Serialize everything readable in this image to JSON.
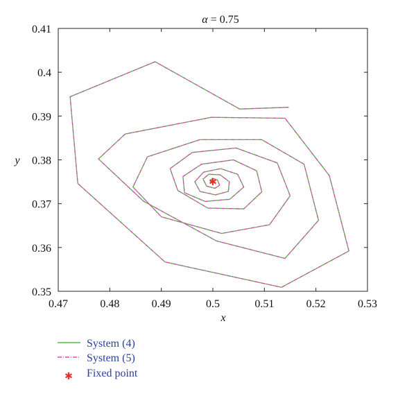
{
  "chart_data": {
    "type": "line",
    "title": "α = 0.75",
    "title_prefix": "α",
    "title_suffix": " = 0.75",
    "xlabel": "x",
    "ylabel": "y",
    "xlim": [
      0.47,
      0.53
    ],
    "ylim": [
      0.35,
      0.41
    ],
    "xticks": [
      "0.47",
      "0.48",
      "0.49",
      "0.5",
      "0.51",
      "0.52",
      "0.53"
    ],
    "yticks": [
      "0.35",
      "0.36",
      "0.37",
      "0.38",
      "0.39",
      "0.4",
      "0.41"
    ],
    "grid": false,
    "legend_placement": "below",
    "series": [
      {
        "name": "System (4)",
        "style": "solid",
        "color": "#5cb84a",
        "x": [
          0.5147,
          0.5052,
          0.4888,
          0.4723,
          0.4738,
          0.4907,
          0.5133,
          0.5264,
          0.5226,
          0.514,
          0.4997,
          0.483,
          0.4778,
          0.4865,
          0.5007,
          0.514,
          0.5205,
          0.5177,
          0.5095,
          0.4975,
          0.4873,
          0.4845,
          0.49,
          0.5017,
          0.511,
          0.515,
          0.5125,
          0.5045,
          0.496,
          0.4917,
          0.4932,
          0.499,
          0.506,
          0.5095,
          0.5085,
          0.504,
          0.4978,
          0.4942,
          0.4945,
          0.4985,
          0.5033,
          0.506,
          0.5048,
          0.5015,
          0.4982,
          0.4965,
          0.4975,
          0.5005,
          0.503,
          0.5032,
          0.5014,
          0.4992,
          0.4981,
          0.4988,
          0.5004,
          0.5013,
          0.5009,
          0.4999,
          0.4995,
          0.5
        ],
        "y": [
          0.392,
          0.3916,
          0.4024,
          0.3944,
          0.3746,
          0.3567,
          0.3509,
          0.3592,
          0.3764,
          0.3895,
          0.3897,
          0.3859,
          0.3802,
          0.3706,
          0.3615,
          0.3575,
          0.3662,
          0.379,
          0.3846,
          0.3846,
          0.3807,
          0.3738,
          0.367,
          0.3632,
          0.3652,
          0.3718,
          0.3793,
          0.3827,
          0.3817,
          0.378,
          0.373,
          0.369,
          0.3688,
          0.3727,
          0.3775,
          0.38,
          0.379,
          0.3762,
          0.3725,
          0.3705,
          0.371,
          0.3738,
          0.3767,
          0.378,
          0.3772,
          0.375,
          0.3728,
          0.372,
          0.3728,
          0.375,
          0.3766,
          0.3767,
          0.3756,
          0.374,
          0.3735,
          0.3742,
          0.3754,
          0.3758,
          0.3751,
          0.375
        ]
      },
      {
        "name": "System (5)",
        "style": "dashdot",
        "color": "#d04fb4",
        "same_as": "System (4)"
      }
    ],
    "points": [
      {
        "name": "Fixed point",
        "x": 0.5,
        "y": 0.375,
        "marker": "*",
        "color": "#e8302a"
      }
    ]
  }
}
